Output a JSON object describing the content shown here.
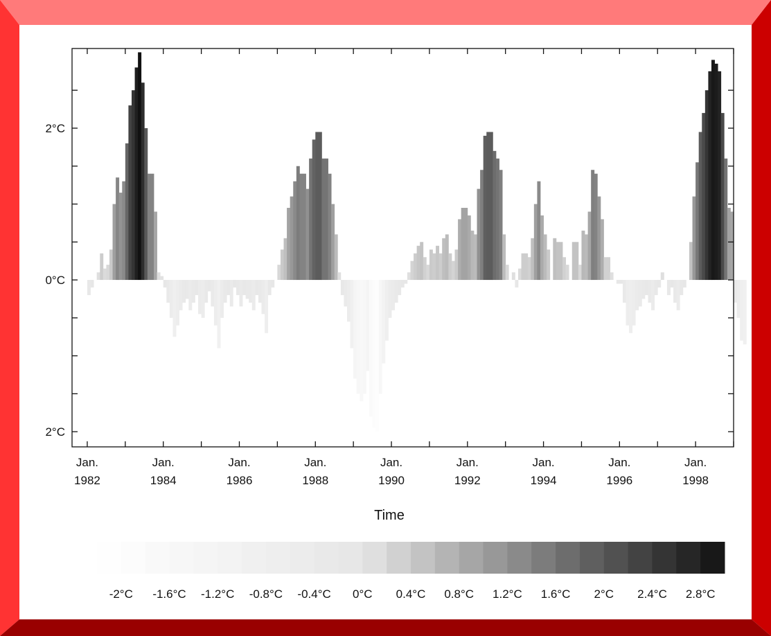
{
  "frame": {
    "colors": {
      "top": "#ff7a7a",
      "left": "#ff3333",
      "right": "#cc0000",
      "bottom": "#990000",
      "inner": "#ffffff"
    }
  },
  "chart_data": {
    "type": "bar",
    "title": "",
    "xlabel": "Time",
    "ylabel": "",
    "x_unit": "year",
    "xlim": [
      1981.6,
      1999.0
    ],
    "ylim": [
      -2.2,
      3.05
    ],
    "y_ticks": [
      {
        "value": 2,
        "label": "2°C"
      },
      {
        "value": 0,
        "label": "0°C"
      },
      {
        "value": -2,
        "label": "2°C"
      }
    ],
    "y_minor_ticks": [
      -1.5,
      -1,
      -0.5,
      0.5,
      1,
      1.5,
      2.5
    ],
    "x_major_ticks": [
      {
        "value": 1982,
        "line1": "Jan.",
        "line2": "1982"
      },
      {
        "value": 1984,
        "line1": "Jan.",
        "line2": "1984"
      },
      {
        "value": 1986,
        "line1": "Jan.",
        "line2": "1986"
      },
      {
        "value": 1988,
        "line1": "Jan.",
        "line2": "1988"
      },
      {
        "value": 1990,
        "line1": "Jan.",
        "line2": "1990"
      },
      {
        "value": 1992,
        "line1": "Jan.",
        "line2": "1992"
      },
      {
        "value": 1994,
        "line1": "Jan.",
        "line2": "1994"
      },
      {
        "value": 1996,
        "line1": "Jan.",
        "line2": "1996"
      },
      {
        "value": 1998,
        "line1": "Jan.",
        "line2": "1998"
      }
    ],
    "x_minor_ticks": [
      1983,
      1985,
      1987,
      1989,
      1991,
      1993,
      1995,
      1997,
      1999
    ],
    "grid": false,
    "color_scale": {
      "min": -2.2,
      "max": 3.0,
      "low_color": "#ffffff",
      "mid_color": "#e6e6e6",
      "high_color": "#111111"
    },
    "monthly_anomaly": {
      "start": "1982-01",
      "values": [
        -0.2,
        -0.1,
        0.0,
        0.1,
        0.35,
        0.15,
        0.2,
        0.4,
        1.0,
        1.35,
        1.15,
        1.3,
        1.8,
        2.3,
        2.5,
        2.8,
        3.0,
        2.6,
        2.0,
        1.4,
        1.4,
        0.9,
        0.1,
        0.05,
        -0.1,
        -0.3,
        -0.5,
        -0.75,
        -0.6,
        -0.4,
        -0.3,
        -0.25,
        -0.4,
        -0.3,
        -0.2,
        -0.45,
        -0.5,
        -0.3,
        -0.15,
        -0.35,
        -0.6,
        -0.9,
        -0.5,
        -0.3,
        -0.2,
        -0.35,
        -0.1,
        -0.2,
        -0.35,
        -0.2,
        -0.25,
        -0.3,
        -0.4,
        -0.2,
        -0.3,
        -0.45,
        -0.7,
        -0.2,
        -0.1,
        0.0,
        0.2,
        0.4,
        0.55,
        0.95,
        1.1,
        1.3,
        1.5,
        1.4,
        1.4,
        1.2,
        1.6,
        1.85,
        1.95,
        1.95,
        1.6,
        1.6,
        1.4,
        1.0,
        0.6,
        0.1,
        -0.2,
        -0.35,
        -0.55,
        -0.9,
        -1.3,
        -1.5,
        -1.6,
        -1.5,
        -1.2,
        -1.8,
        -1.95,
        -2.0,
        -1.5,
        -1.1,
        -0.8,
        -0.5,
        -0.4,
        -0.3,
        -0.2,
        -0.1,
        -0.05,
        0.1,
        0.25,
        0.35,
        0.45,
        0.5,
        0.3,
        0.2,
        0.4,
        0.35,
        0.45,
        0.35,
        0.55,
        0.6,
        0.35,
        0.25,
        0.4,
        0.8,
        0.95,
        0.95,
        0.85,
        0.65,
        0.6,
        1.2,
        1.45,
        1.9,
        1.95,
        1.95,
        1.7,
        1.6,
        1.45,
        0.6,
        0.2,
        0.0,
        0.1,
        -0.1,
        0.15,
        0.35,
        0.35,
        0.3,
        0.55,
        1.0,
        1.3,
        0.85,
        0.6,
        0.4,
        0.0,
        0.55,
        0.5,
        0.5,
        0.3,
        0.2,
        0.0,
        0.5,
        0.5,
        0.2,
        0.65,
        0.6,
        0.9,
        1.45,
        1.4,
        1.1,
        0.8,
        0.3,
        0.3,
        0.1,
        0.0,
        -0.05,
        -0.05,
        -0.3,
        -0.6,
        -0.7,
        -0.6,
        -0.4,
        -0.35,
        -0.25,
        -0.2,
        -0.3,
        -0.4,
        -0.2,
        -0.1,
        0.1,
        0.0,
        -0.2,
        -0.1,
        -0.3,
        -0.4,
        -0.2,
        -0.1,
        0.0,
        0.5,
        1.1,
        1.55,
        1.95,
        2.2,
        2.5,
        2.75,
        2.9,
        2.85,
        2.75,
        2.2,
        1.6,
        0.95,
        0.9,
        -0.3,
        -0.5,
        -0.8,
        -0.85
      ]
    },
    "legend": {
      "position": "bottom",
      "labels": [
        "-2°C",
        "-1.6°C",
        "-1.2°C",
        "-0.8°C",
        "-0.4°C",
        "0°C",
        "0.4°C",
        "0.8°C",
        "1.2°C",
        "1.6°C",
        "2°C",
        "2.4°C",
        "2.8°C"
      ],
      "label_values": [
        -2.0,
        -1.6,
        -1.2,
        -0.8,
        -0.4,
        0.0,
        0.4,
        0.8,
        1.2,
        1.6,
        2.0,
        2.4,
        2.8
      ]
    }
  }
}
